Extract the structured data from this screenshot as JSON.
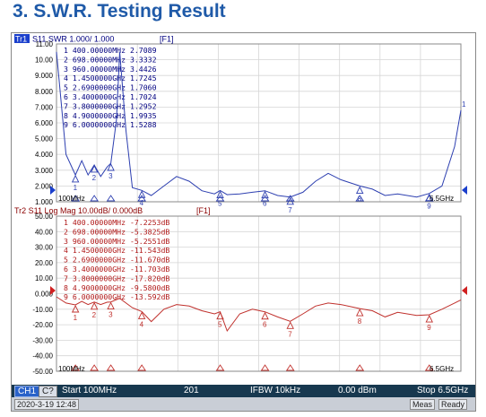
{
  "page": {
    "heading": "3. S.W.R. Testing Result"
  },
  "trace1": {
    "id_badge": "Tr1",
    "header": "S11  SWR 1.000/ 1.000",
    "fn": "[F1]",
    "x_start": "100MHz",
    "x_stop": "6.5GHz",
    "end_marker": "1",
    "markers": [
      {
        "num": "1",
        "freq": "400.00000MHz",
        "val": "2.7089"
      },
      {
        "num": "2",
        "freq": "698.00000MHz",
        "val": "3.3332"
      },
      {
        "num": "3",
        "freq": "960.00000MHz",
        "val": "3.4426"
      },
      {
        "num": "4",
        "freq": "1.4500000GHz",
        "val": "1.7245"
      },
      {
        "num": "5",
        "freq": "2.6900000GHz",
        "val": "1.7060"
      },
      {
        "num": "6",
        "freq": "3.4000000GHz",
        "val": "1.7024"
      },
      {
        "num": "7",
        "freq": "3.8000000GHz",
        "val": "1.2952"
      },
      {
        "num": "8",
        "freq": "4.9000000GHz",
        "val": "1.9935"
      },
      {
        "num": "9",
        "freq": "6.0000000GHz",
        "val": "1.5288"
      }
    ],
    "yticks": [
      "11.00",
      "10.00",
      "9.000",
      "8.000",
      "7.000",
      "6.000",
      "5.000",
      "4.000",
      "3.000",
      "2.000",
      "1.000"
    ]
  },
  "trace2": {
    "header": "Tr2 S11 Log Mag 10.00dB/ 0.000dB",
    "fn": "[F1]",
    "x_start": "100MHz",
    "x_stop": "6.5GHz",
    "markers": [
      {
        "num": "1",
        "freq": "400.00000MHz",
        "val": "-7.2253dB"
      },
      {
        "num": "2",
        "freq": "698.00000MHz",
        "val": "-5.3825dB"
      },
      {
        "num": "3",
        "freq": "960.00000MHz",
        "val": "-5.2551dB"
      },
      {
        "num": "4",
        "freq": "1.4500000GHz",
        "val": "-11.543dB"
      },
      {
        "num": "5",
        "freq": "2.6900000GHz",
        "val": "-11.670dB"
      },
      {
        "num": "6",
        "freq": "3.4000000GHz",
        "val": "-11.703dB"
      },
      {
        "num": "7",
        "freq": "3.8000000GHz",
        "val": "-17.820dB"
      },
      {
        "num": "8",
        "freq": "4.9000000GHz",
        "val": "-9.5800dB"
      },
      {
        "num": "9",
        "freq": "6.0000000GHz",
        "val": "-13.592dB"
      }
    ],
    "yticks": [
      "50.00",
      "40.00",
      "30.00",
      "20.00",
      "10.00",
      "0.000",
      "-10.00",
      "-20.00",
      "-30.00",
      "-40.00",
      "-50.00"
    ]
  },
  "status": {
    "ch1": "CH1",
    "ch2": "C?",
    "start": "Start 100MHz",
    "points": "201",
    "ifbw": "IFBW 10kHz",
    "power": "0.00 dBm",
    "stop": "Stop 6.5GHz",
    "datetime": "2020-3-19 12:48",
    "meas": "Meas",
    "ready": "Ready"
  },
  "colors": {
    "trace1": "#2d3fb0",
    "trace2": "#c0302c",
    "marker_active": "#1a3fcc",
    "grid": "#d0d0d0",
    "statusbar": "#17384f"
  },
  "chart_data": [
    {
      "type": "line",
      "title": "S11 SWR 1.000/ 1.000",
      "xlabel": "",
      "ylabel": "",
      "xlim_ghz": [
        0.1,
        6.5
      ],
      "ylim": [
        1,
        11
      ],
      "grid": true,
      "series": [
        {
          "name": "S11 SWR",
          "x_ghz": [
            0.1,
            0.25,
            0.4,
            0.5,
            0.6,
            0.698,
            0.8,
            0.9,
            0.96,
            1.05,
            1.1,
            1.2,
            1.3,
            1.45,
            1.6,
            1.8,
            2.0,
            2.2,
            2.4,
            2.6,
            2.69,
            2.8,
            3.0,
            3.2,
            3.4,
            3.6,
            3.8,
            4.0,
            4.2,
            4.4,
            4.6,
            4.9,
            5.1,
            5.3,
            5.5,
            5.8,
            6.0,
            6.2,
            6.4,
            6.5
          ],
          "y": [
            10.5,
            4.0,
            2.7,
            3.6,
            2.7,
            3.33,
            2.6,
            3.2,
            3.44,
            6.2,
            10.5,
            5.5,
            1.9,
            1.72,
            1.4,
            2.0,
            2.6,
            2.3,
            1.7,
            1.5,
            1.71,
            1.45,
            1.5,
            1.6,
            1.7,
            1.4,
            1.3,
            1.6,
            2.3,
            2.8,
            2.4,
            2.0,
            1.8,
            1.4,
            1.5,
            1.3,
            1.53,
            2.0,
            4.5,
            6.8
          ]
        }
      ]
    },
    {
      "type": "line",
      "title": "S11 Log Mag 10.00dB/ 0.000dB",
      "xlabel": "",
      "ylabel": "",
      "xlim_ghz": [
        0.1,
        6.5
      ],
      "ylim": [
        -50,
        50
      ],
      "grid": true,
      "series": [
        {
          "name": "S11 Log Mag",
          "x_ghz": [
            0.1,
            0.25,
            0.4,
            0.5,
            0.6,
            0.698,
            0.8,
            0.9,
            0.96,
            1.1,
            1.3,
            1.45,
            1.6,
            1.8,
            2.0,
            2.2,
            2.4,
            2.6,
            2.69,
            2.8,
            3.0,
            3.2,
            3.4,
            3.6,
            3.8,
            4.0,
            4.2,
            4.4,
            4.6,
            4.9,
            5.1,
            5.3,
            5.5,
            5.8,
            6.0,
            6.2,
            6.4,
            6.5
          ],
          "y": [
            -2,
            -6,
            -7.2,
            -5,
            -7,
            -5.4,
            -7,
            -5.5,
            -5.3,
            -3,
            -9,
            -11.5,
            -18,
            -10,
            -7,
            -8,
            -11,
            -13,
            -11.7,
            -24,
            -13,
            -10,
            -11.7,
            -15,
            -17.8,
            -13,
            -8,
            -6,
            -7,
            -9.6,
            -11,
            -15,
            -12,
            -14,
            -13.6,
            -10,
            -6,
            -4
          ]
        }
      ]
    }
  ]
}
